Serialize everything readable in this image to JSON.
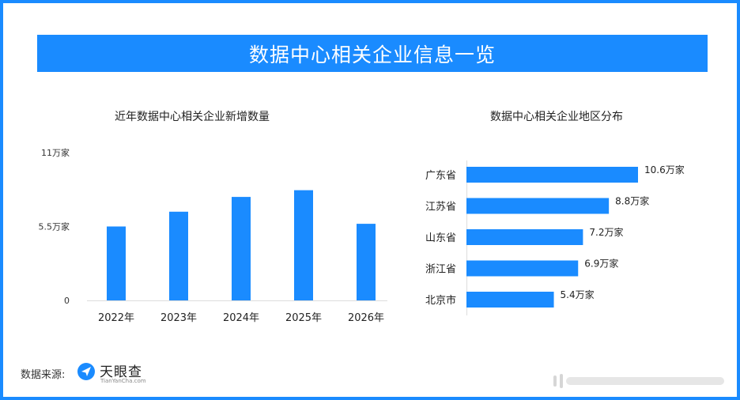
{
  "header": {
    "title": "数据中心相关企业信息一览"
  },
  "chart_data": [
    {
      "type": "bar",
      "title": "近年数据中心相关企业新增数量",
      "categories": [
        "2022年",
        "2023年",
        "2024年",
        "2025年",
        "2026年"
      ],
      "values": [
        5.5,
        6.6,
        7.7,
        8.2,
        5.7
      ],
      "yticks": [
        "11万家",
        "5.5万家",
        "0"
      ],
      "ylim": [
        0,
        11
      ],
      "color": "#1a8bff"
    },
    {
      "type": "bar",
      "orientation": "horizontal",
      "title": "数据中心相关企业地区分布",
      "categories": [
        "广东省",
        "江苏省",
        "山东省",
        "浙江省",
        "北京市"
      ],
      "values": [
        10.6,
        8.8,
        7.2,
        6.9,
        5.4
      ],
      "labels": [
        "10.6万家",
        "8.8万家",
        "7.2万家",
        "6.9万家",
        "5.4万家"
      ],
      "color": "#1a8bff"
    }
  ],
  "footer": {
    "source_label": "数据来源:",
    "logo_text": "天眼查",
    "logo_sub": "TianYanCha.com"
  },
  "colors": {
    "accent": "#1a8bff"
  }
}
